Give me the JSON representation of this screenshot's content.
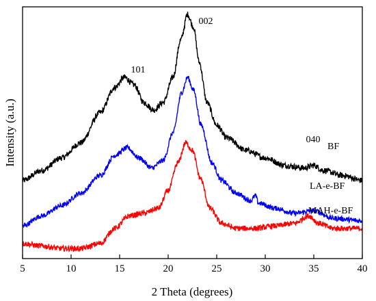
{
  "chart_data": {
    "type": "line",
    "title": "",
    "xlabel": "2 Theta (degrees)",
    "ylabel": "Intensity (a.u.)",
    "xlim": [
      5,
      40
    ],
    "x_ticks": [
      "5",
      "10",
      "15",
      "20",
      "25",
      "30",
      "35",
      "40"
    ],
    "y_ticks_labeled": false,
    "grid": false,
    "legend": "none",
    "series": [
      {
        "name": "BF",
        "color": "#000000",
        "points": [
          [
            5,
            0.31
          ],
          [
            7,
            0.35
          ],
          [
            9,
            0.4
          ],
          [
            11,
            0.46
          ],
          [
            13,
            0.58
          ],
          [
            14.5,
            0.68
          ],
          [
            15.5,
            0.72
          ],
          [
            16.5,
            0.69
          ],
          [
            17.5,
            0.62
          ],
          [
            18.5,
            0.59
          ],
          [
            19.5,
            0.62
          ],
          [
            20.5,
            0.72
          ],
          [
            21.3,
            0.87
          ],
          [
            22.0,
            0.97
          ],
          [
            22.6,
            0.92
          ],
          [
            23.2,
            0.78
          ],
          [
            24,
            0.62
          ],
          [
            25,
            0.53
          ],
          [
            26,
            0.48
          ],
          [
            28,
            0.43
          ],
          [
            30,
            0.4
          ],
          [
            32,
            0.37
          ],
          [
            34,
            0.36
          ],
          [
            35,
            0.37
          ],
          [
            36,
            0.35
          ],
          [
            38,
            0.33
          ],
          [
            40,
            0.31
          ]
        ]
      },
      {
        "name": "LA-e-BF",
        "color": "#0000ff",
        "points": [
          [
            5,
            0.13
          ],
          [
            7,
            0.17
          ],
          [
            9,
            0.21
          ],
          [
            11,
            0.26
          ],
          [
            13,
            0.33
          ],
          [
            14.5,
            0.41
          ],
          [
            15.8,
            0.44
          ],
          [
            17,
            0.4
          ],
          [
            18.3,
            0.36
          ],
          [
            19.5,
            0.39
          ],
          [
            20.5,
            0.5
          ],
          [
            21.4,
            0.66
          ],
          [
            22.0,
            0.72
          ],
          [
            22.6,
            0.67
          ],
          [
            23.4,
            0.53
          ],
          [
            24.5,
            0.38
          ],
          [
            25.5,
            0.31
          ],
          [
            27,
            0.26
          ],
          [
            28.5,
            0.23
          ],
          [
            29,
            0.25
          ],
          [
            29.3,
            0.22
          ],
          [
            31,
            0.2
          ],
          [
            33,
            0.18
          ],
          [
            35,
            0.19
          ],
          [
            37,
            0.16
          ],
          [
            40,
            0.15
          ]
        ]
      },
      {
        "name": "MAH-e-BF",
        "color": "#ff0000",
        "points": [
          [
            5,
            0.06
          ],
          [
            7,
            0.05
          ],
          [
            9,
            0.04
          ],
          [
            11,
            0.04
          ],
          [
            13,
            0.06
          ],
          [
            14.5,
            0.12
          ],
          [
            16,
            0.17
          ],
          [
            17.5,
            0.18
          ],
          [
            19,
            0.2
          ],
          [
            20,
            0.27
          ],
          [
            21,
            0.38
          ],
          [
            21.8,
            0.46
          ],
          [
            22.5,
            0.43
          ],
          [
            23.3,
            0.32
          ],
          [
            24.3,
            0.2
          ],
          [
            25.5,
            0.14
          ],
          [
            27,
            0.12
          ],
          [
            29,
            0.12
          ],
          [
            31,
            0.13
          ],
          [
            33,
            0.14
          ],
          [
            34.5,
            0.17
          ],
          [
            35.5,
            0.14
          ],
          [
            37,
            0.12
          ],
          [
            40,
            0.12
          ]
        ]
      }
    ],
    "labels": {
      "bf": "BF",
      "la": "LA-e-BF",
      "mah": "MAH-e-BF"
    },
    "annotations": {
      "p101": "101",
      "p002": "002",
      "p040": "040"
    }
  }
}
